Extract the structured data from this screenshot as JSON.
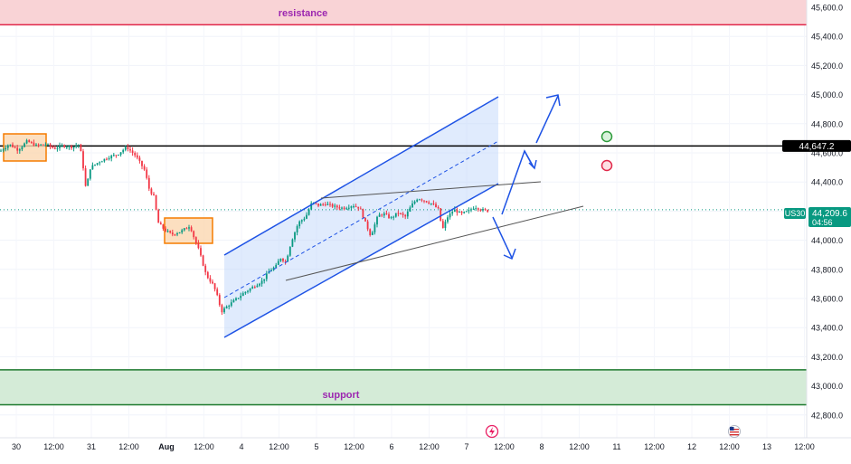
{
  "symbol": "US30",
  "colors": {
    "up": "#089981",
    "down": "#f23645",
    "channel": "#1e53e5",
    "channel_fill": "#bbd3fb",
    "resistance_fill": "#f9d3d6",
    "resistance_line": "#e0284a",
    "support_fill": "#d4ebd7",
    "support_line": "#1e7a2e",
    "zone_fill": "#fbd7b0",
    "zone_border": "#f57c00",
    "zone_label": "#9c27b0",
    "level_line": "#000000",
    "triangle_line": "#555555",
    "current_price": "#089981"
  },
  "zones": {
    "resistance_label": "resistance",
    "support_label": "support"
  },
  "price_tags": {
    "level": "44,647.2",
    "current_price": "44,209.6",
    "countdown": "04:56"
  },
  "chart_data": {
    "type": "candlestick",
    "title": "",
    "y_axis": {
      "ticks": [
        "45,600.0",
        "45,400.0",
        "45,200.0",
        "45,000.0",
        "44,800.0",
        "44,600.0",
        "44,400.0",
        "44,200.0",
        "44,000.0",
        "43,800.0",
        "43,600.0",
        "43,400.0",
        "43,200.0",
        "43,000.0",
        "42,800.0"
      ],
      "range": [
        42790,
        45620
      ]
    },
    "x_axis": {
      "ticks": [
        "30",
        "12:00",
        "31",
        "12:00",
        "Aug",
        "12:00",
        "4",
        "12:00",
        "5",
        "12:00",
        "6",
        "12:00",
        "7",
        "12:00",
        "8",
        "12:00",
        "11",
        "12:00",
        "12",
        "12:00",
        "13",
        "12:00"
      ]
    },
    "levels": {
      "resistance_zone": [
        45480,
        45670
      ],
      "support_zone": [
        42870,
        43110
      ],
      "horizontal_line": 44647.2,
      "current_price": 44209.6
    },
    "price_path": [
      [
        0,
        44610
      ],
      [
        10,
        44660
      ],
      [
        20,
        44620
      ],
      [
        30,
        44680
      ],
      [
        40,
        44650
      ],
      [
        50,
        44660
      ],
      [
        60,
        44630
      ],
      [
        70,
        44650
      ],
      [
        80,
        44640
      ],
      [
        88,
        44660
      ],
      [
        92,
        44500
      ],
      [
        95,
        44350
      ],
      [
        100,
        44500
      ],
      [
        110,
        44540
      ],
      [
        120,
        44570
      ],
      [
        130,
        44590
      ],
      [
        140,
        44640
      ],
      [
        150,
        44580
      ],
      [
        160,
        44480
      ],
      [
        165,
        44350
      ],
      [
        170,
        44300
      ],
      [
        175,
        44120
      ],
      [
        182,
        44070
      ],
      [
        190,
        44040
      ],
      [
        200,
        44060
      ],
      [
        210,
        44100
      ],
      [
        215,
        44010
      ],
      [
        220,
        43930
      ],
      [
        228,
        43760
      ],
      [
        236,
        43690
      ],
      [
        240,
        43620
      ],
      [
        245,
        43510
      ],
      [
        250,
        43540
      ],
      [
        260,
        43590
      ],
      [
        270,
        43640
      ],
      [
        280,
        43680
      ],
      [
        290,
        43720
      ],
      [
        298,
        43790
      ],
      [
        305,
        43820
      ],
      [
        310,
        43880
      ],
      [
        316,
        43850
      ],
      [
        322,
        43990
      ],
      [
        330,
        44120
      ],
      [
        338,
        44160
      ],
      [
        345,
        44260
      ],
      [
        352,
        44240
      ],
      [
        360,
        44250
      ],
      [
        370,
        44230
      ],
      [
        380,
        44220
      ],
      [
        390,
        44240
      ],
      [
        398,
        44220
      ],
      [
        404,
        44120
      ],
      [
        410,
        44030
      ],
      [
        418,
        44170
      ],
      [
        425,
        44180
      ],
      [
        432,
        44150
      ],
      [
        440,
        44190
      ],
      [
        448,
        44160
      ],
      [
        455,
        44240
      ],
      [
        462,
        44290
      ],
      [
        470,
        44270
      ],
      [
        478,
        44250
      ],
      [
        485,
        44210
      ],
      [
        489,
        44070
      ],
      [
        495,
        44160
      ],
      [
        502,
        44210
      ],
      [
        510,
        44180
      ],
      [
        518,
        44200
      ],
      [
        525,
        44230
      ],
      [
        532,
        44210
      ],
      [
        540,
        44200
      ]
    ]
  }
}
